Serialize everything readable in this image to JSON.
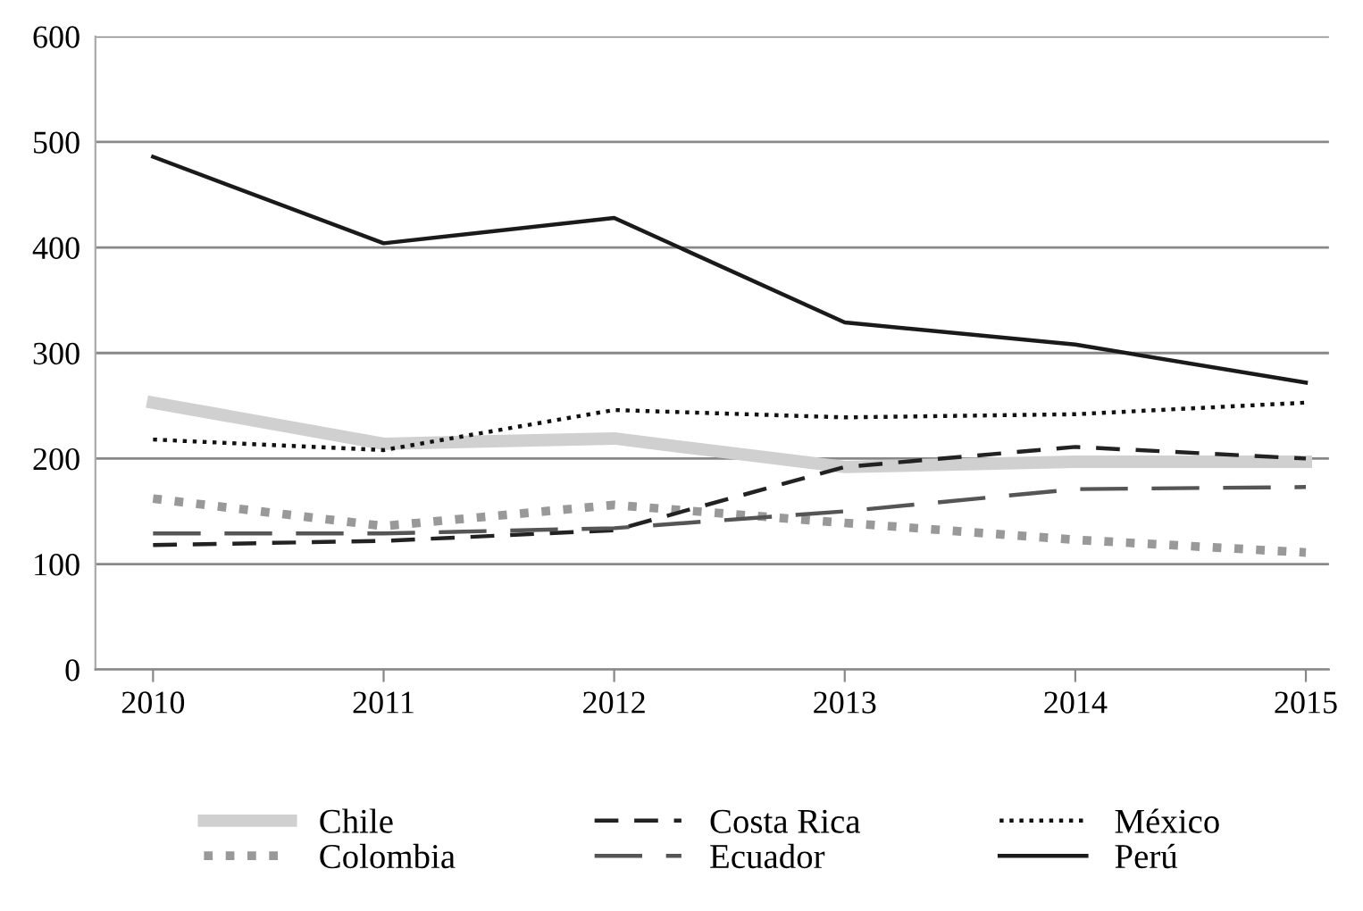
{
  "chart_data": {
    "type": "line",
    "categories": [
      "2010",
      "2011",
      "2012",
      "2013",
      "2014",
      "2015"
    ],
    "ylim": [
      0,
      600
    ],
    "yticks": [
      0,
      100,
      200,
      300,
      400,
      500,
      600
    ],
    "grid": "y",
    "legend": "bottom",
    "series": [
      {
        "name": "Chile",
        "color": "#d0d0d0",
        "line_style": "solid",
        "values": [
          253,
          214,
          219,
          192,
          197,
          197
        ]
      },
      {
        "name": "Colombia",
        "color": "#999999",
        "line_style": "dotted",
        "values": [
          162,
          136,
          156,
          139,
          123,
          111
        ]
      },
      {
        "name": "Costa Rica",
        "color": "#222222",
        "line_style": "dashed",
        "values": [
          118,
          122,
          132,
          192,
          211,
          200
        ]
      },
      {
        "name": "Ecuador",
        "color": "#555555",
        "line_style": "longdash",
        "values": [
          129,
          129,
          134,
          150,
          171,
          173
        ]
      },
      {
        "name": "México",
        "color": "#111111",
        "line_style": "dotted",
        "values": [
          218,
          208,
          246,
          239,
          242,
          253
        ]
      },
      {
        "name": "Perú",
        "color": "#1a1a1a",
        "line_style": "solid",
        "values": [
          486,
          404,
          428,
          329,
          308,
          272
        ]
      }
    ]
  }
}
